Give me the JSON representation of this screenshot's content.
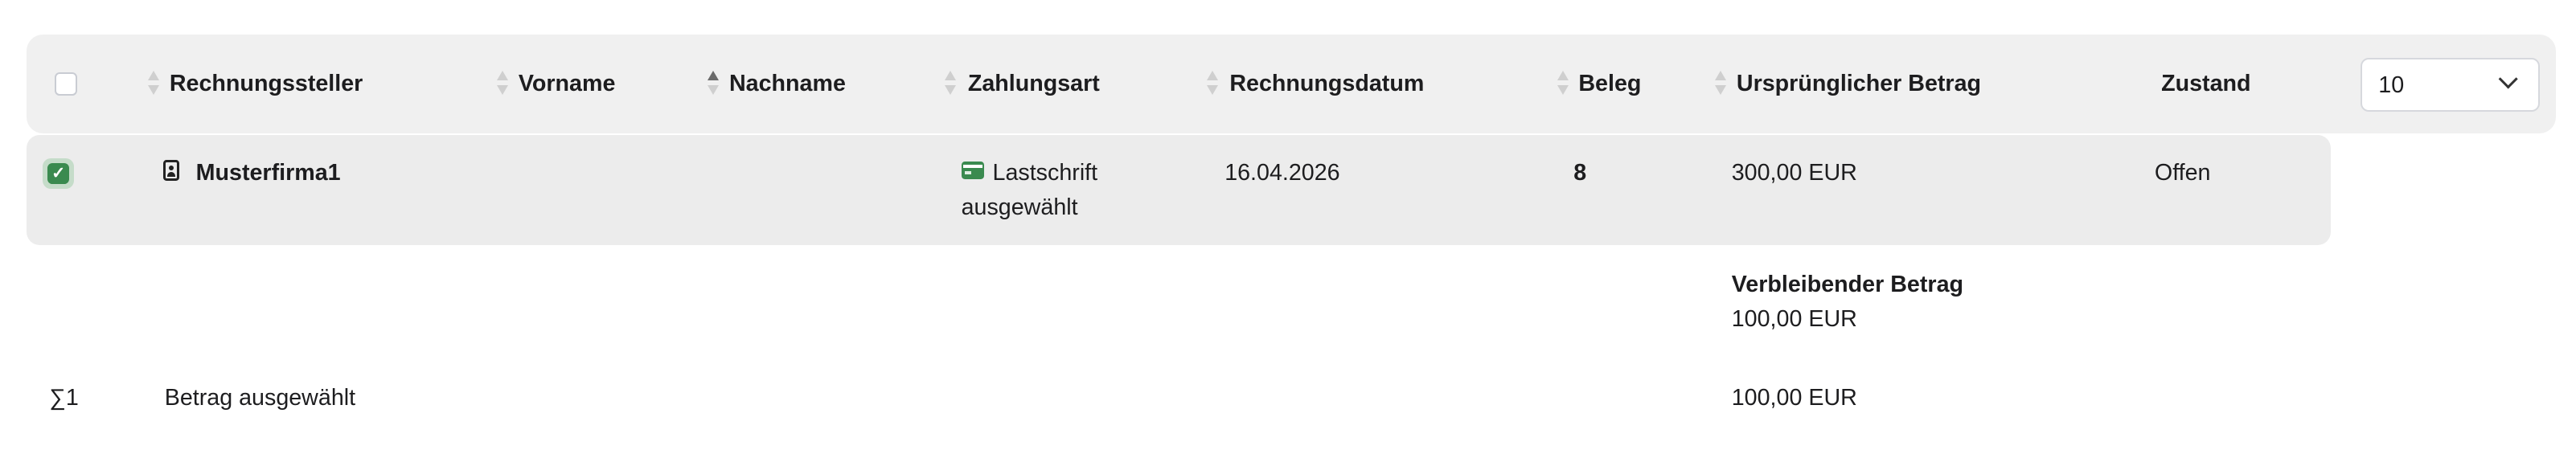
{
  "table": {
    "columns": [
      {
        "label": "Rechnungssteller",
        "sort": "none"
      },
      {
        "label": "Vorname",
        "sort": "none"
      },
      {
        "label": "Nachname",
        "sort": "ascending"
      },
      {
        "label": "Zahlungsart",
        "sort": "none"
      },
      {
        "label": "Rechnungsdatum",
        "sort": "none"
      },
      {
        "label": "Beleg",
        "sort": "none"
      },
      {
        "label": "Ursprünglicher Betrag",
        "sort": "none"
      },
      {
        "label": "Zustand"
      }
    ],
    "page_size": "10",
    "select_all_checked": false,
    "rows": [
      {
        "selected": true,
        "rechnungssteller": "Musterfirma1",
        "vorname": "",
        "nachname": "",
        "zahlungsart_line1": "Lastschrift",
        "zahlungsart_line2": "ausgewählt",
        "rechnungsdatum": "16.04.2026",
        "beleg": "8",
        "betrag": "300,00 EUR",
        "zustand": "Offen",
        "verbleibend_label": "Verbleibender Betrag",
        "verbleibend_value": "100,00 EUR"
      }
    ],
    "summary": {
      "count": "∑1",
      "label": "Betrag ausgewählt",
      "value": "100,00 EUR"
    }
  },
  "colors": {
    "accent": "#3a8a4f",
    "header_bg": "#f0f0f0",
    "row_bg": "#ececec"
  }
}
